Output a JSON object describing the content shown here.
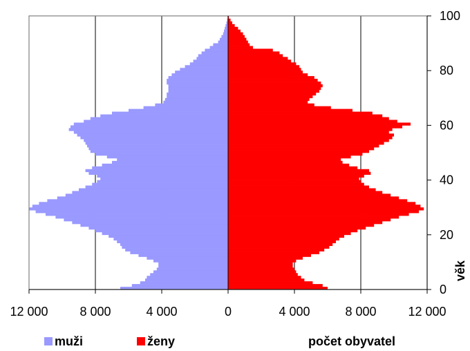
{
  "chart_data": {
    "type": "bar",
    "orientation": "horizontal",
    "layout": "population-pyramid",
    "title": "",
    "xlabel": "počet obyvatel",
    "ylabel": "věk",
    "xlim": [
      -12000,
      12000
    ],
    "ylim": [
      0,
      100
    ],
    "x_ticks": [
      -12000,
      -8000,
      -4000,
      0,
      4000,
      8000,
      12000
    ],
    "x_tick_labels": [
      "12 000",
      "8 000",
      "4 000",
      "0",
      "4 000",
      "8 000",
      "12 000"
    ],
    "y_ticks": [
      0,
      20,
      40,
      60,
      80,
      100
    ],
    "y_tick_labels": [
      "0",
      "20",
      "40",
      "60",
      "80",
      "100"
    ],
    "grid": "vertical",
    "legend_position": "bottom-left",
    "ages": [
      0,
      1,
      2,
      3,
      4,
      5,
      6,
      7,
      8,
      9,
      10,
      11,
      12,
      13,
      14,
      15,
      16,
      17,
      18,
      19,
      20,
      21,
      22,
      23,
      24,
      25,
      26,
      27,
      28,
      29,
      30,
      31,
      32,
      33,
      34,
      35,
      36,
      37,
      38,
      39,
      40,
      41,
      42,
      43,
      44,
      45,
      46,
      47,
      48,
      49,
      50,
      51,
      52,
      53,
      54,
      55,
      56,
      57,
      58,
      59,
      60,
      61,
      62,
      63,
      64,
      65,
      66,
      67,
      68,
      69,
      70,
      71,
      72,
      73,
      74,
      75,
      76,
      77,
      78,
      79,
      80,
      81,
      82,
      83,
      84,
      85,
      86,
      87,
      88,
      89,
      90,
      91,
      92,
      93,
      94,
      95,
      96,
      97,
      98,
      99
    ],
    "series": [
      {
        "name": "muži",
        "color": "#9999ff",
        "values": [
          6500,
          5800,
          5300,
          5000,
          4900,
          4700,
          4500,
          4300,
          4200,
          4200,
          4500,
          4900,
          5400,
          5900,
          6200,
          6400,
          6500,
          6700,
          6900,
          7200,
          7600,
          8000,
          8400,
          8900,
          9400,
          9900,
          10400,
          11000,
          11600,
          12000,
          11800,
          11400,
          10900,
          10300,
          9800,
          9400,
          9000,
          8600,
          8200,
          7900,
          7700,
          7900,
          8400,
          8600,
          8200,
          7600,
          7000,
          6700,
          7300,
          8000,
          8300,
          8400,
          8500,
          8600,
          8700,
          8900,
          9100,
          9300,
          9600,
          9500,
          9300,
          8700,
          8300,
          7700,
          7000,
          6000,
          5100,
          4400,
          3900,
          3800,
          3700,
          3700,
          3600,
          3600,
          3600,
          3700,
          3700,
          3600,
          3400,
          3200,
          2900,
          2600,
          2300,
          2100,
          1900,
          1800,
          1600,
          1400,
          1100,
          900,
          600,
          500,
          400,
          300,
          250,
          200,
          150,
          100,
          60,
          30
        ]
      },
      {
        "name": "ženy",
        "color": "#ff0000",
        "values": [
          6000,
          5700,
          5100,
          4600,
          4400,
          4200,
          4100,
          4000,
          3900,
          3900,
          4100,
          4500,
          5000,
          5500,
          5800,
          6100,
          6300,
          6500,
          6700,
          7000,
          7400,
          7800,
          8300,
          8800,
          9300,
          9800,
          10300,
          10900,
          11500,
          11800,
          11600,
          11300,
          10800,
          10300,
          9800,
          9300,
          8900,
          8500,
          8200,
          8000,
          7900,
          8200,
          8600,
          8500,
          7800,
          7300,
          6900,
          6800,
          7400,
          8100,
          8500,
          8800,
          9100,
          9400,
          9700,
          9900,
          10000,
          9700,
          9900,
          10500,
          11000,
          10200,
          9700,
          9300,
          8700,
          7500,
          6200,
          5200,
          4800,
          4900,
          5100,
          5300,
          5500,
          5600,
          5700,
          5600,
          5400,
          5200,
          4800,
          4500,
          4400,
          4300,
          4100,
          3800,
          3600,
          3300,
          3100,
          2700,
          1500,
          1300,
          1200,
          1100,
          1000,
          900,
          750,
          600,
          400,
          250,
          150,
          50
        ]
      }
    ]
  },
  "legend": {
    "male_label": "muži",
    "female_label": "ženy"
  }
}
